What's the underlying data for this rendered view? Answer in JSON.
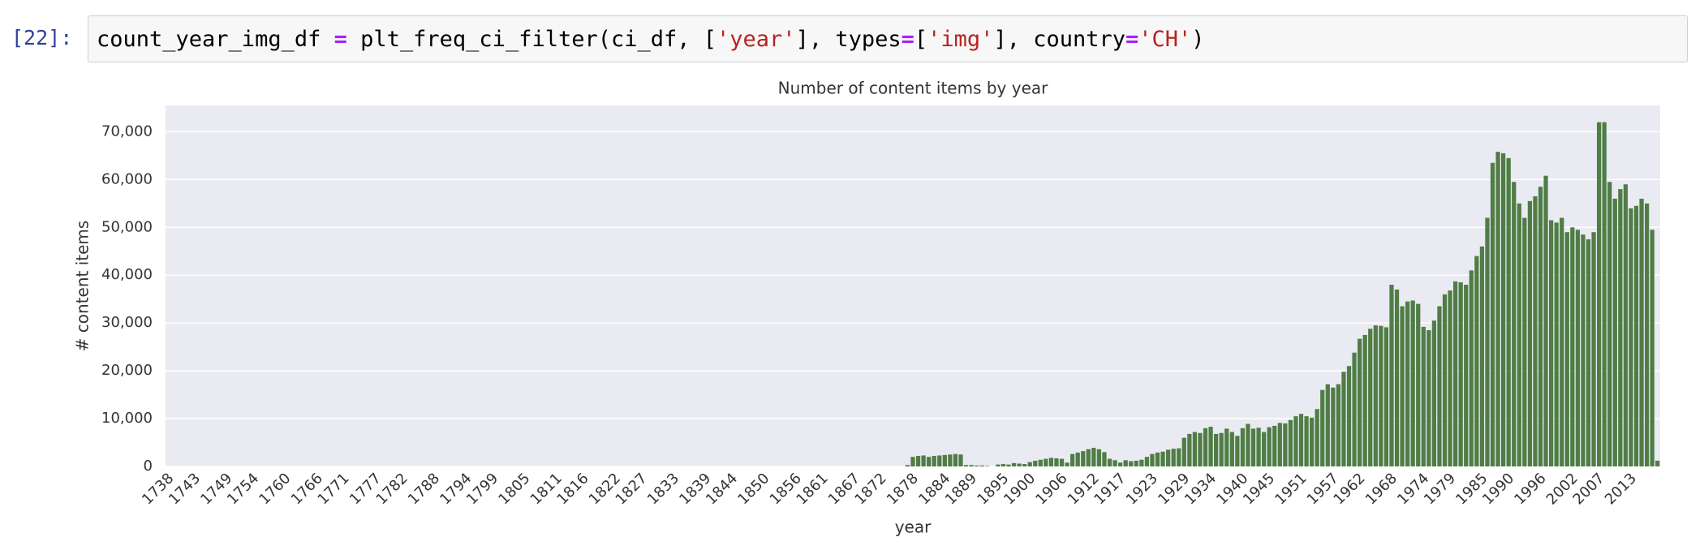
{
  "cell": {
    "prompt": "[22]:",
    "code": [
      "count_year_img_df ",
      "=",
      " plt_freq_ci_filter(ci_df, [",
      "'year'",
      "], types",
      "=",
      "[",
      "'img'",
      "], country",
      "=",
      "'CH'",
      ")"
    ]
  },
  "chart_data": {
    "type": "bar",
    "title": "Number of content items by year",
    "x_label": "year",
    "y_label": "# content items",
    "color": "#4f7d45",
    "grid": true,
    "x": [
      1877,
      1878,
      1879,
      1880,
      1881,
      1882,
      1883,
      1884,
      1885,
      1886,
      1887,
      1888,
      1889,
      1890,
      1891,
      1892,
      1893,
      1894,
      1895,
      1896,
      1897,
      1898,
      1899,
      1900,
      1901,
      1902,
      1903,
      1904,
      1905,
      1906,
      1907,
      1908,
      1909,
      1910,
      1911,
      1912,
      1913,
      1914,
      1915,
      1916,
      1917,
      1918,
      1919,
      1920,
      1921,
      1922,
      1923,
      1924,
      1925,
      1926,
      1927,
      1928,
      1929,
      1930,
      1931,
      1932,
      1933,
      1934,
      1935,
      1936,
      1937,
      1938,
      1939,
      1940,
      1941,
      1942,
      1943,
      1944,
      1945,
      1946,
      1947,
      1948,
      1949,
      1950,
      1951,
      1952,
      1953,
      1954,
      1955,
      1956,
      1957,
      1958,
      1959,
      1960,
      1961,
      1962,
      1963,
      1964,
      1965,
      1966,
      1967,
      1968,
      1969,
      1970,
      1971,
      1972,
      1973,
      1974,
      1975,
      1976,
      1977,
      1978,
      1979,
      1980,
      1981,
      1982,
      1983,
      1984,
      1985,
      1986,
      1987,
      1988,
      1989,
      1990,
      1991,
      1992,
      1993,
      1994,
      1995,
      1996,
      1997,
      1998,
      1999,
      2000,
      2001,
      2002,
      2003,
      2004,
      2005,
      2006,
      2007,
      2008,
      2009,
      2010,
      2011,
      2012,
      2013,
      2014,
      2015,
      2016,
      2017,
      2018
    ],
    "values": [
      300,
      2000,
      2200,
      2300,
      2000,
      2200,
      2300,
      2400,
      2500,
      2600,
      2500,
      300,
      300,
      200,
      200,
      100,
      0,
      400,
      500,
      400,
      700,
      600,
      500,
      900,
      1200,
      1400,
      1600,
      1800,
      1700,
      1600,
      800,
      2600,
      2900,
      3200,
      3600,
      3900,
      3600,
      3000,
      1600,
      1300,
      800,
      1300,
      1100,
      1200,
      1400,
      2000,
      2600,
      2900,
      3100,
      3500,
      3700,
      3800,
      6000,
      6800,
      7200,
      7000,
      8000,
      8300,
      6800,
      7000,
      7900,
      7200,
      6400,
      8000,
      8900,
      7900,
      8100,
      7200,
      8200,
      8500,
      9100,
      9000,
      9700,
      10500,
      11000,
      10500,
      10200,
      12000,
      16000,
      17200,
      16500,
      17200,
      19800,
      21000,
      23800,
      26700,
      27500,
      28800,
      29500,
      29400,
      29100,
      38000,
      37000,
      33500,
      34500,
      34700,
      34000,
      29200,
      28500,
      30500,
      33500,
      36000,
      36800,
      38700,
      38500,
      38000,
      41000,
      44000,
      46000,
      52000,
      63500,
      65800,
      65500,
      64500,
      59500,
      55000,
      52000,
      55500,
      56500,
      58500,
      60800,
      51500,
      51000,
      52000,
      49000,
      50000,
      49500,
      48500,
      47500,
      49000,
      72000,
      72000,
      59500,
      56000,
      58000,
      59000,
      54000,
      54500,
      56000,
      55000,
      49500,
      1200
    ],
    "xlim": [
      1737.5,
      2018.5
    ],
    "xticks": [
      1738,
      1743,
      1749,
      1754,
      1760,
      1766,
      1771,
      1777,
      1782,
      1788,
      1794,
      1799,
      1805,
      1811,
      1816,
      1822,
      1827,
      1833,
      1839,
      1844,
      1850,
      1856,
      1861,
      1867,
      1872,
      1878,
      1884,
      1889,
      1895,
      1900,
      1906,
      1912,
      1917,
      1923,
      1929,
      1934,
      1940,
      1945,
      1951,
      1957,
      1962,
      1968,
      1974,
      1979,
      1985,
      1990,
      1996,
      2002,
      2007,
      2013
    ],
    "ylim": [
      0,
      75500
    ],
    "yticks": [
      0,
      {
        "value": 10000,
        "label": "10,000"
      },
      {
        "value": 20000,
        "label": "20,000"
      },
      {
        "value": 30000,
        "label": "30,000"
      },
      {
        "value": 40000,
        "label": "40,000"
      },
      {
        "value": 50000,
        "label": "50,000"
      },
      {
        "value": 60000,
        "label": "60,000"
      },
      {
        "value": 70000,
        "label": "70,000"
      }
    ]
  }
}
